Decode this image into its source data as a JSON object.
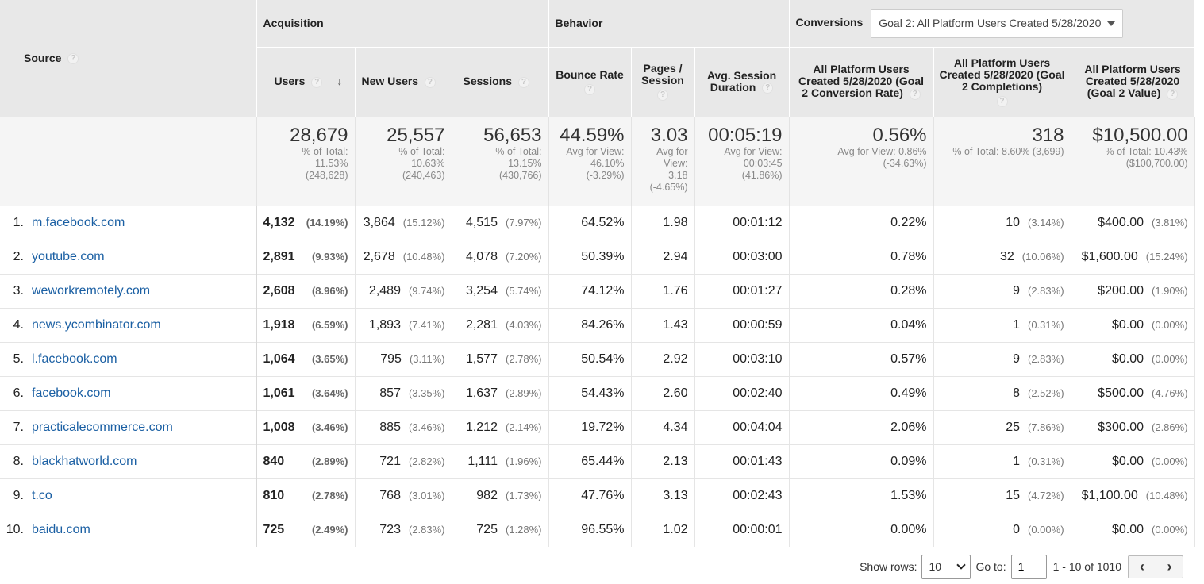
{
  "header": {
    "source": "Source",
    "acquisition": "Acquisition",
    "behavior": "Behavior",
    "conversions": "Conversions",
    "goal_select": "Goal 2: All Platform Users Created 5/28/2020",
    "cols": {
      "users": "Users",
      "new_users": "New Users",
      "sessions": "Sessions",
      "bounce_rate": "Bounce Rate",
      "pages_session": "Pages / Session",
      "avg_duration": "Avg. Session Duration",
      "conv_rate": "All Platform Users Created 5/28/2020 (Goal 2 Conversion Rate)",
      "completions": "All Platform Users Created 5/28/2020 (Goal 2 Completions)",
      "value": "All Platform Users Created 5/28/2020 (Goal 2 Value)"
    },
    "help_glyph": "?",
    "sort_glyph": "↓"
  },
  "totals": {
    "users": {
      "value": "28,679",
      "line1": "% of Total:",
      "line2": "11.53%",
      "line3": "(248,628)"
    },
    "new_users": {
      "value": "25,557",
      "line1": "% of Total:",
      "line2": "10.63%",
      "line3": "(240,463)"
    },
    "sessions": {
      "value": "56,653",
      "line1": "% of Total:",
      "line2": "13.15%",
      "line3": "(430,766)"
    },
    "bounce_rate": {
      "value": "44.59%",
      "line1": "Avg for View:",
      "line2": "46.10%",
      "line3": "(-3.29%)"
    },
    "pages_session": {
      "value": "3.03",
      "line1": "Avg for",
      "line2": "View:",
      "line3": "3.18",
      "line4": "(-4.65%)"
    },
    "avg_duration": {
      "value": "00:05:19",
      "line1": "Avg for View:",
      "line2": "00:03:45",
      "line3": "(41.86%)"
    },
    "conv_rate": {
      "value": "0.56%",
      "line1": "Avg for View: 0.86%",
      "line2": "(-34.63%)"
    },
    "completions": {
      "value": "318",
      "line1": "% of Total: 8.60% (3,699)"
    },
    "goal_value": {
      "value": "$10,500.00",
      "line1": "% of Total: 10.43%",
      "line2": "($100,700.00)"
    }
  },
  "rows": [
    {
      "idx": "1.",
      "source": "m.facebook.com",
      "users": "4,132",
      "users_pct": "(14.19%)",
      "new_users": "3,864",
      "new_users_pct": "(15.12%)",
      "sessions": "4,515",
      "sessions_pct": "(7.97%)",
      "bounce": "64.52%",
      "pages": "1.98",
      "duration": "00:01:12",
      "conv_rate": "0.22%",
      "completions": "10",
      "completions_pct": "(3.14%)",
      "value": "$400.00",
      "value_pct": "(3.81%)"
    },
    {
      "idx": "2.",
      "source": "youtube.com",
      "users": "2,891",
      "users_pct": "(9.93%)",
      "new_users": "2,678",
      "new_users_pct": "(10.48%)",
      "sessions": "4,078",
      "sessions_pct": "(7.20%)",
      "bounce": "50.39%",
      "pages": "2.94",
      "duration": "00:03:00",
      "conv_rate": "0.78%",
      "completions": "32",
      "completions_pct": "(10.06%)",
      "value": "$1,600.00",
      "value_pct": "(15.24%)"
    },
    {
      "idx": "3.",
      "source": "weworkremotely.com",
      "users": "2,608",
      "users_pct": "(8.96%)",
      "new_users": "2,489",
      "new_users_pct": "(9.74%)",
      "sessions": "3,254",
      "sessions_pct": "(5.74%)",
      "bounce": "74.12%",
      "pages": "1.76",
      "duration": "00:01:27",
      "conv_rate": "0.28%",
      "completions": "9",
      "completions_pct": "(2.83%)",
      "value": "$200.00",
      "value_pct": "(1.90%)"
    },
    {
      "idx": "4.",
      "source": "news.ycombinator.com",
      "users": "1,918",
      "users_pct": "(6.59%)",
      "new_users": "1,893",
      "new_users_pct": "(7.41%)",
      "sessions": "2,281",
      "sessions_pct": "(4.03%)",
      "bounce": "84.26%",
      "pages": "1.43",
      "duration": "00:00:59",
      "conv_rate": "0.04%",
      "completions": "1",
      "completions_pct": "(0.31%)",
      "value": "$0.00",
      "value_pct": "(0.00%)"
    },
    {
      "idx": "5.",
      "source": "l.facebook.com",
      "users": "1,064",
      "users_pct": "(3.65%)",
      "new_users": "795",
      "new_users_pct": "(3.11%)",
      "sessions": "1,577",
      "sessions_pct": "(2.78%)",
      "bounce": "50.54%",
      "pages": "2.92",
      "duration": "00:03:10",
      "conv_rate": "0.57%",
      "completions": "9",
      "completions_pct": "(2.83%)",
      "value": "$0.00",
      "value_pct": "(0.00%)"
    },
    {
      "idx": "6.",
      "source": "facebook.com",
      "users": "1,061",
      "users_pct": "(3.64%)",
      "new_users": "857",
      "new_users_pct": "(3.35%)",
      "sessions": "1,637",
      "sessions_pct": "(2.89%)",
      "bounce": "54.43%",
      "pages": "2.60",
      "duration": "00:02:40",
      "conv_rate": "0.49%",
      "completions": "8",
      "completions_pct": "(2.52%)",
      "value": "$500.00",
      "value_pct": "(4.76%)"
    },
    {
      "idx": "7.",
      "source": "practicalecommerce.com",
      "users": "1,008",
      "users_pct": "(3.46%)",
      "new_users": "885",
      "new_users_pct": "(3.46%)",
      "sessions": "1,212",
      "sessions_pct": "(2.14%)",
      "bounce": "19.72%",
      "pages": "4.34",
      "duration": "00:04:04",
      "conv_rate": "2.06%",
      "completions": "25",
      "completions_pct": "(7.86%)",
      "value": "$300.00",
      "value_pct": "(2.86%)"
    },
    {
      "idx": "8.",
      "source": "blackhatworld.com",
      "users": "840",
      "users_pct": "(2.89%)",
      "new_users": "721",
      "new_users_pct": "(2.82%)",
      "sessions": "1,111",
      "sessions_pct": "(1.96%)",
      "bounce": "65.44%",
      "pages": "2.13",
      "duration": "00:01:43",
      "conv_rate": "0.09%",
      "completions": "1",
      "completions_pct": "(0.31%)",
      "value": "$0.00",
      "value_pct": "(0.00%)"
    },
    {
      "idx": "9.",
      "source": "t.co",
      "users": "810",
      "users_pct": "(2.78%)",
      "new_users": "768",
      "new_users_pct": "(3.01%)",
      "sessions": "982",
      "sessions_pct": "(1.73%)",
      "bounce": "47.76%",
      "pages": "3.13",
      "duration": "00:02:43",
      "conv_rate": "1.53%",
      "completions": "15",
      "completions_pct": "(4.72%)",
      "value": "$1,100.00",
      "value_pct": "(10.48%)"
    },
    {
      "idx": "10.",
      "source": "baidu.com",
      "users": "725",
      "users_pct": "(2.49%)",
      "new_users": "723",
      "new_users_pct": "(2.83%)",
      "sessions": "725",
      "sessions_pct": "(1.28%)",
      "bounce": "96.55%",
      "pages": "1.02",
      "duration": "00:00:01",
      "conv_rate": "0.00%",
      "completions": "0",
      "completions_pct": "(0.00%)",
      "value": "$0.00",
      "value_pct": "(0.00%)"
    }
  ],
  "pager": {
    "show_rows_label": "Show rows:",
    "show_rows_value": "10",
    "goto_label": "Go to:",
    "goto_value": "1",
    "range": "1 - 10 of 1010",
    "prev_glyph": "‹",
    "next_glyph": "›"
  },
  "colors": {
    "link": "#1a5fa3",
    "header_bg": "#e8e8e8"
  }
}
